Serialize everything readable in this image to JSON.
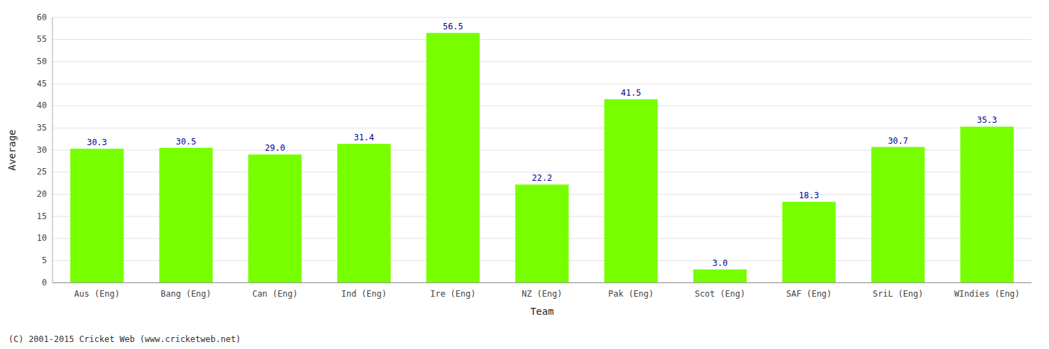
{
  "chart_data": {
    "type": "bar",
    "categories": [
      "Aus (Eng)",
      "Bang (Eng)",
      "Can (Eng)",
      "Ind (Eng)",
      "Ire (Eng)",
      "NZ (Eng)",
      "Pak (Eng)",
      "Scot (Eng)",
      "SAF (Eng)",
      "SriL (Eng)",
      "WIndies (Eng)"
    ],
    "values": [
      30.3,
      30.5,
      29.0,
      31.4,
      56.5,
      22.2,
      41.5,
      3.0,
      18.3,
      30.7,
      35.3
    ],
    "value_labels": [
      "30.3",
      "30.5",
      "29.0",
      "31.4",
      "56.5",
      "22.2",
      "41.5",
      "3.0",
      "18.3",
      "30.7",
      "35.3"
    ],
    "data_labels": true,
    "color": "#77FF00",
    "x_label": "Team",
    "y_label": "Average",
    "ylim": [
      0,
      60
    ],
    "yticks": [
      0,
      5,
      10,
      15,
      20,
      25,
      30,
      35,
      40,
      45,
      50,
      55,
      60
    ],
    "grid": true,
    "annotations": [
      "(C) 2001-2015 Cricket Web (www.cricketweb.net)"
    ]
  }
}
